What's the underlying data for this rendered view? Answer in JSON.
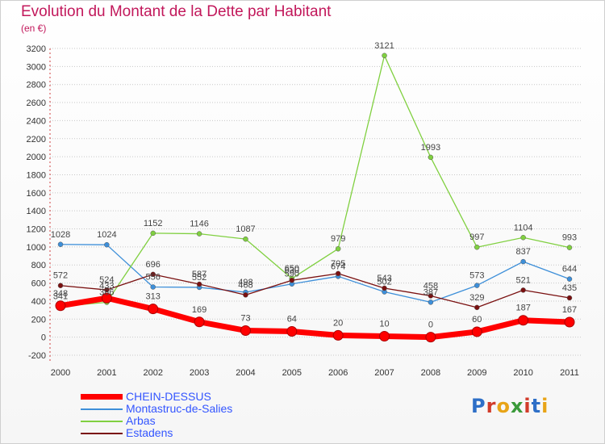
{
  "title": "Evolution du Montant de la Dette par Habitant",
  "subtitle": "(en €)",
  "logo": {
    "text": "Proxiti",
    "letter_colors": [
      "#2e6fc7",
      "#d13b2a",
      "#e8a417",
      "#3a9a3a",
      "#d13b2a",
      "#2e6fc7",
      "#e8a417"
    ]
  },
  "chart_data": {
    "type": "line",
    "title": "Evolution du Montant de la Dette par Habitant",
    "subtitle": "(en €)",
    "categories": [
      "2000",
      "2001",
      "2002",
      "2003",
      "2004",
      "2005",
      "2006",
      "2007",
      "2008",
      "2009",
      "2010",
      "2011"
    ],
    "ylim": [
      -200,
      3200
    ],
    "yticks": [
      -200,
      0,
      200,
      400,
      600,
      800,
      1000,
      1200,
      1400,
      1600,
      1800,
      2000,
      2200,
      2400,
      2600,
      2800,
      3000,
      3200
    ],
    "grid": "horizontal dotted",
    "legend_position": "bottom-left",
    "series": [
      {
        "name": "CHEIN-DESSUS",
        "color": "#ff0000",
        "emphasis": "thick",
        "values": [
          348,
          433,
          313,
          169,
          73,
          64,
          20,
          10,
          0,
          60,
          187,
          167
        ],
        "labels": [
          "348",
          "433",
          "313",
          "169",
          "73",
          "64",
          "20",
          "10",
          "0",
          "60",
          "187",
          "167"
        ]
      },
      {
        "name": "Montastruc-de-Salies",
        "color": "#3d8fd9",
        "values": [
          1028,
          1024,
          556,
          552,
          498,
          590,
          674,
          502,
          387,
          573,
          837,
          644
        ],
        "labels": [
          "1028",
          "1024",
          "556",
          "552",
          "498",
          "590",
          "674",
          "502",
          "387",
          "573",
          "837",
          "644"
        ]
      },
      {
        "name": "Arbas",
        "color": "#80d040",
        "values": [
          341,
          386,
          1152,
          1146,
          1087,
          650,
          979,
          3121,
          1993,
          997,
          1104,
          993
        ],
        "labels": [
          "341",
          "386",
          "1152",
          "1146",
          "1087",
          "650",
          "979",
          "3121",
          "1993",
          "997",
          "1104",
          "993"
        ]
      },
      {
        "name": "Estadens",
        "color": "#7a1010",
        "values": [
          572,
          524,
          696,
          587,
          468,
          630,
          705,
          543,
          458,
          329,
          521,
          435
        ],
        "labels": [
          "572",
          "524",
          "696",
          "587",
          "468",
          "630",
          "705",
          "543",
          "458",
          "329",
          "521",
          "435"
        ]
      }
    ]
  }
}
